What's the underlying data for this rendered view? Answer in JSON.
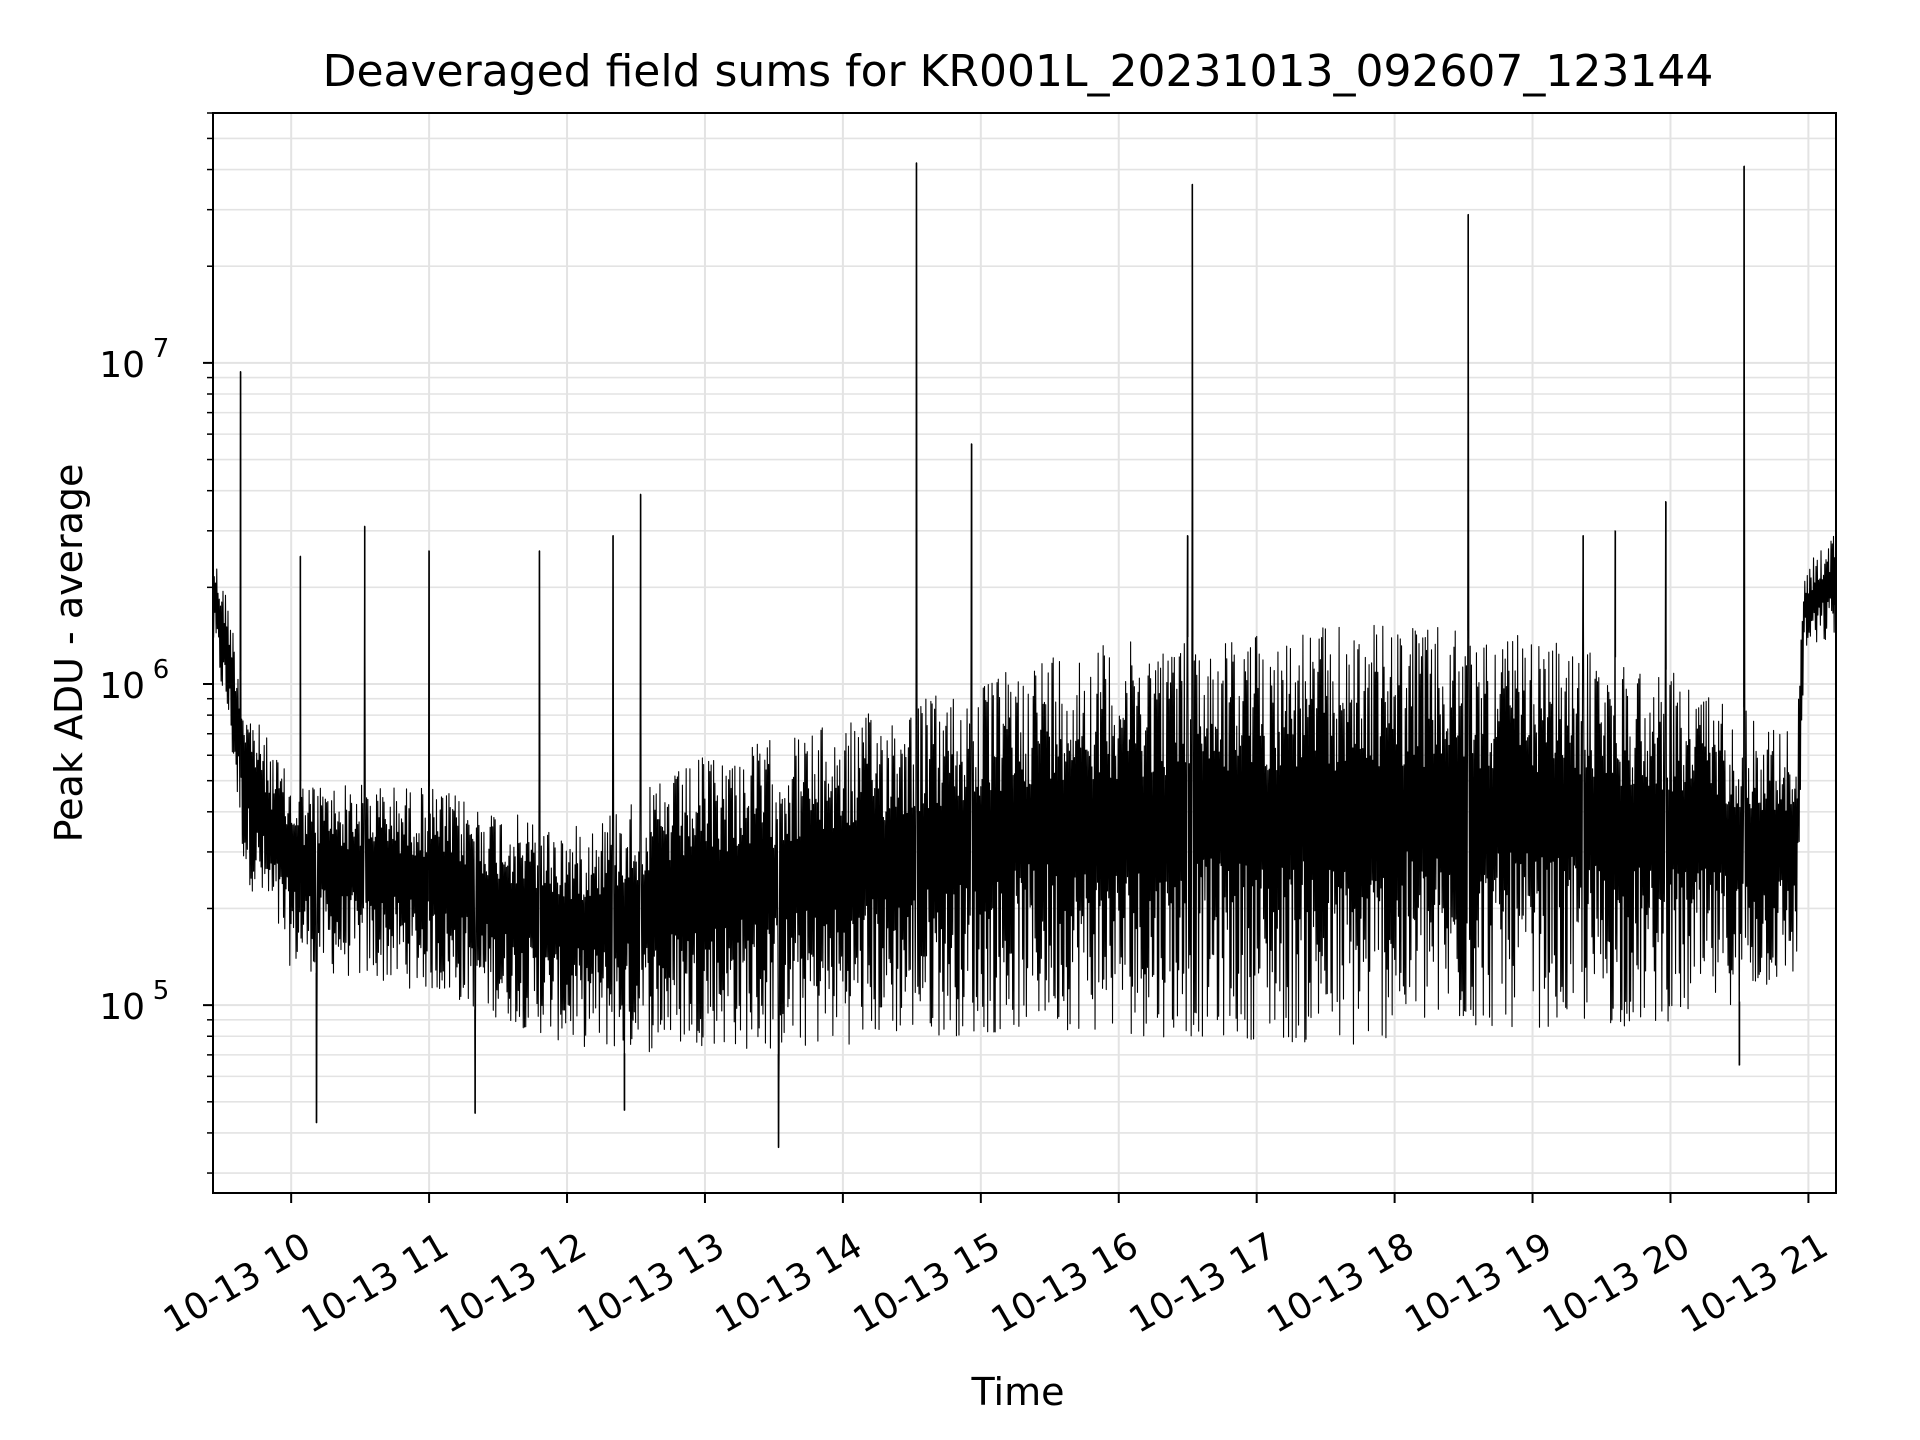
{
  "chart_data": {
    "type": "line",
    "title": "Deaveraged field sums for KR001L_20231013_092607_123144",
    "xlabel": "Time",
    "ylabel": "Peak ADU - average",
    "xlim": [
      "2023-10-13 09:26",
      "2023-10-13 21:12"
    ],
    "ylim": [
      26000,
      60000000
    ],
    "yscale": "log",
    "grid": true,
    "line_color": "#000000",
    "grid_color": "#e3e3e3",
    "x_ticks": [
      {
        "t": "2023-10-13 10:00",
        "label": "10-13 10"
      },
      {
        "t": "2023-10-13 11:00",
        "label": "10-13 11"
      },
      {
        "t": "2023-10-13 12:00",
        "label": "10-13 12"
      },
      {
        "t": "2023-10-13 13:00",
        "label": "10-13 13"
      },
      {
        "t": "2023-10-13 14:00",
        "label": "10-13 14"
      },
      {
        "t": "2023-10-13 15:00",
        "label": "10-13 15"
      },
      {
        "t": "2023-10-13 16:00",
        "label": "10-13 16"
      },
      {
        "t": "2023-10-13 17:00",
        "label": "10-13 17"
      },
      {
        "t": "2023-10-13 18:00",
        "label": "10-13 18"
      },
      {
        "t": "2023-10-13 19:00",
        "label": "10-13 19"
      },
      {
        "t": "2023-10-13 20:00",
        "label": "10-13 20"
      },
      {
        "t": "2023-10-13 21:00",
        "label": "10-13 21"
      }
    ],
    "y_ticks": [
      {
        "value": 100000,
        "base": "10",
        "exp": "5"
      },
      {
        "value": 1000000,
        "base": "10",
        "exp": "6"
      },
      {
        "value": 10000000,
        "base": "10",
        "exp": "7"
      }
    ],
    "band_envelope": [
      {
        "t": "2023-10-13 09:26",
        "low": 1300000,
        "high": 2600000
      },
      {
        "t": "2023-10-13 09:33",
        "low": 700000,
        "high": 1800000
      },
      {
        "t": "2023-10-13 09:40",
        "low": 250000,
        "high": 900000
      },
      {
        "t": "2023-10-13 10:00",
        "low": 130000,
        "high": 500000
      },
      {
        "t": "2023-10-13 11:00",
        "low": 110000,
        "high": 480000
      },
      {
        "t": "2023-10-13 12:00",
        "low": 75000,
        "high": 350000
      },
      {
        "t": "2023-10-13 12:30",
        "low": 70000,
        "high": 450000
      },
      {
        "t": "2023-10-13 13:00",
        "low": 75000,
        "high": 600000
      },
      {
        "t": "2023-10-13 13:30",
        "low": 70000,
        "high": 680000
      },
      {
        "t": "2023-10-13 14:00",
        "low": 75000,
        "high": 760000
      },
      {
        "t": "2023-10-13 14:30",
        "low": 80000,
        "high": 900000
      },
      {
        "t": "2023-10-13 15:00",
        "low": 80000,
        "high": 1000000
      },
      {
        "t": "2023-10-13 15:30",
        "low": 85000,
        "high": 1300000
      },
      {
        "t": "2023-10-13 16:00",
        "low": 80000,
        "high": 1350000
      },
      {
        "t": "2023-10-13 17:00",
        "low": 78000,
        "high": 1450000
      },
      {
        "t": "2023-10-13 17:45",
        "low": 70000,
        "high": 1550000
      },
      {
        "t": "2023-10-13 18:00",
        "low": 80000,
        "high": 1550000
      },
      {
        "t": "2023-10-13 19:00",
        "low": 85000,
        "high": 1400000
      },
      {
        "t": "2023-10-13 20:00",
        "low": 85000,
        "high": 1100000
      },
      {
        "t": "2023-10-13 20:55",
        "low": 120000,
        "high": 700000
      },
      {
        "t": "2023-10-13 20:58",
        "low": 1200000,
        "high": 2300000
      },
      {
        "t": "2023-10-13 21:12",
        "low": 1400000,
        "high": 3000000
      }
    ],
    "spikes": [
      {
        "t": "2023-10-13 09:38",
        "value": 9400000
      },
      {
        "t": "2023-10-13 10:04",
        "value": 2500000
      },
      {
        "t": "2023-10-13 10:11",
        "value": 43000
      },
      {
        "t": "2023-10-13 10:32",
        "value": 3100000
      },
      {
        "t": "2023-10-13 11:00",
        "value": 2600000
      },
      {
        "t": "2023-10-13 11:20",
        "value": 46000
      },
      {
        "t": "2023-10-13 11:48",
        "value": 2600000
      },
      {
        "t": "2023-10-13 12:20",
        "value": 2900000
      },
      {
        "t": "2023-10-13 12:32",
        "value": 3900000
      },
      {
        "t": "2023-10-13 12:25",
        "value": 47000
      },
      {
        "t": "2023-10-13 13:32",
        "value": 36000
      },
      {
        "t": "2023-10-13 14:32",
        "value": 42000000
      },
      {
        "t": "2023-10-13 14:56",
        "value": 5600000
      },
      {
        "t": "2023-10-13 16:32",
        "value": 36000000
      },
      {
        "t": "2023-10-13 16:30",
        "value": 2900000
      },
      {
        "t": "2023-10-13 18:32",
        "value": 29000000
      },
      {
        "t": "2023-10-13 19:22",
        "value": 2900000
      },
      {
        "t": "2023-10-13 19:36",
        "value": 3000000
      },
      {
        "t": "2023-10-13 19:58",
        "value": 3700000
      },
      {
        "t": "2023-10-13 20:32",
        "value": 41000000
      },
      {
        "t": "2023-10-13 20:30",
        "value": 65000
      }
    ]
  }
}
